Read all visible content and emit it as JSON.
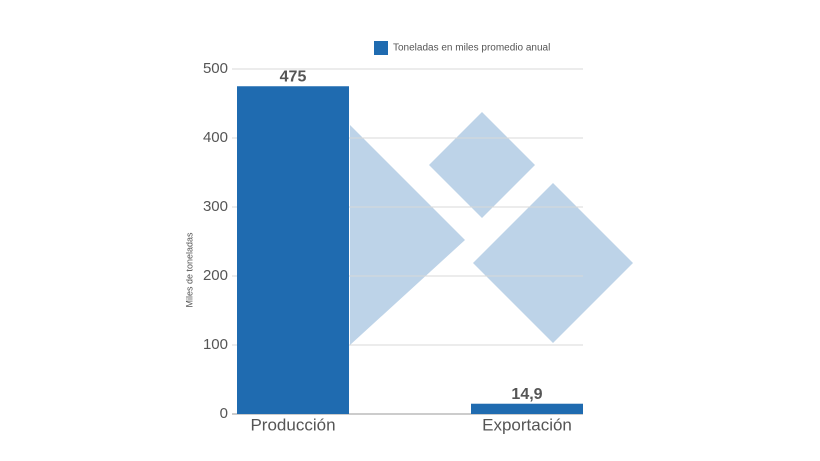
{
  "chart_data": {
    "type": "bar",
    "y_label": "Miles de toneladas",
    "categories": [
      "Producción",
      "Exportación"
    ],
    "series": [
      {
        "name": "Toneladas en miles promedio anual",
        "color": "#1f6bb0",
        "values": [
          475,
          14.9
        ],
        "value_labels": [
          "475",
          "14,9"
        ]
      }
    ],
    "ylim": [
      0,
      500
    ],
    "yticks": [
      0,
      100,
      200,
      300,
      400,
      500
    ],
    "grid": true
  }
}
